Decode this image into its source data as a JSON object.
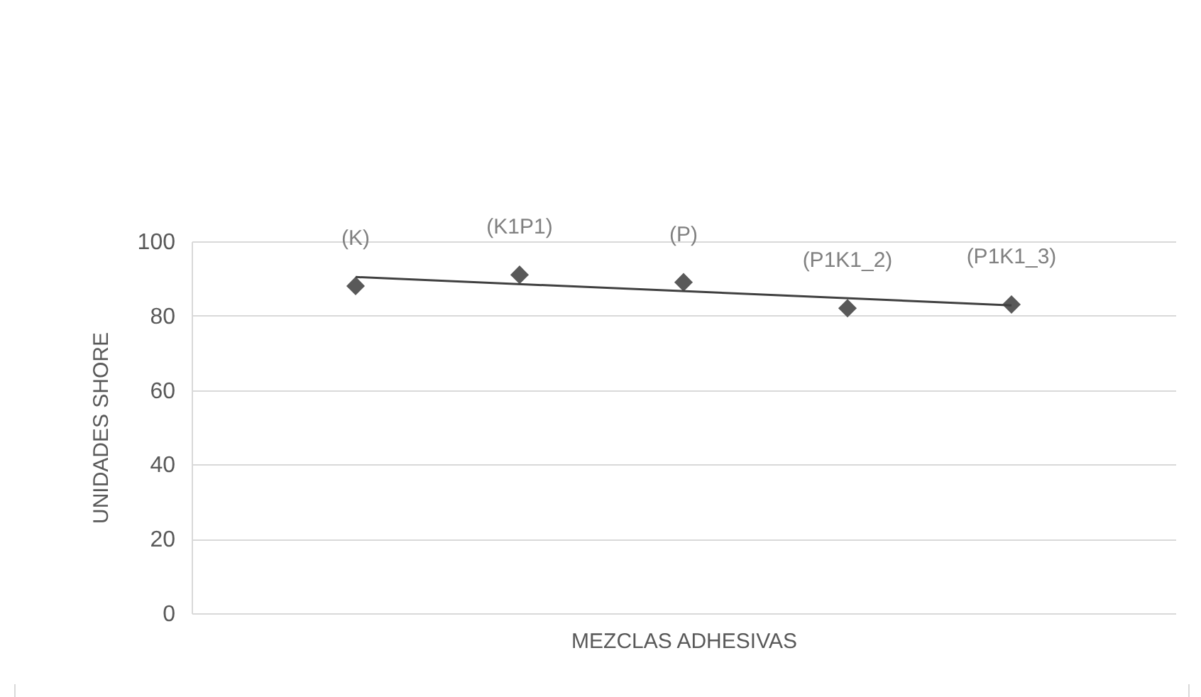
{
  "chart_data": {
    "type": "scatter",
    "xlabel": "MEZCLAS ADHESIVAS",
    "ylabel": "UNIDADES SHORE",
    "categories": [
      "(K)",
      "(K1P1)",
      "(P)",
      "(P1K1_2)",
      "(P1K1_3)"
    ],
    "series": [
      {
        "color": "#595959",
        "values": [
          88,
          91,
          89,
          82,
          83
        ],
        "marker": "diamond"
      },
      {
        "type": "line",
        "color": "#404040",
        "x": [
          "(K)",
          "(P1K1_3)"
        ],
        "values": [
          90.4,
          82.8
        ],
        "line_style": "solid"
      }
    ],
    "ylim": [
      0,
      100
    ],
    "yticks": [
      0,
      20,
      40,
      60,
      80,
      100
    ],
    "grid": "y",
    "tick_labels": "y"
  }
}
